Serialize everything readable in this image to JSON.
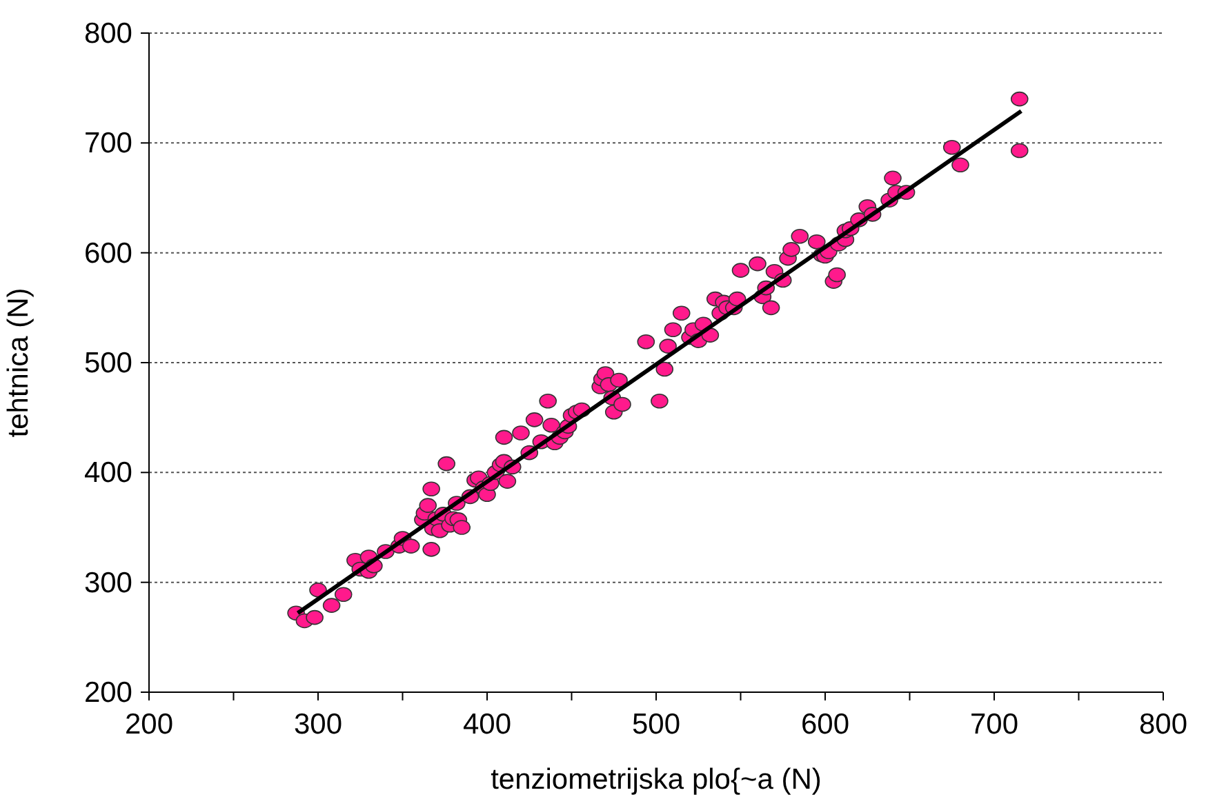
{
  "chart_data": {
    "type": "scatter",
    "xlabel": "tenziometrijska plo{~a (N)",
    "ylabel": "tehtnica (N)",
    "xlim": [
      200,
      800
    ],
    "ylim": [
      200,
      800
    ],
    "xticks": [
      200,
      {
        "value": 250,
        "label": null
      },
      300,
      {
        "value": 350,
        "label": null
      },
      400,
      {
        "value": 450,
        "label": null
      },
      500,
      {
        "value": 550,
        "label": null
      },
      600,
      {
        "value": 650,
        "label": null
      },
      700,
      {
        "value": 750,
        "label": null
      },
      800
    ],
    "yticks": [
      200,
      300,
      400,
      500,
      600,
      700,
      800
    ],
    "grid": "y",
    "marker": "circle",
    "series": [
      {
        "color": "#ff1a8c",
        "x": [
          287,
          292,
          298,
          300,
          308,
          315,
          322,
          325,
          330,
          330,
          333,
          340,
          348,
          350,
          355,
          362,
          363,
          365,
          367,
          367,
          368,
          370,
          372,
          374,
          376,
          378,
          380,
          383,
          382,
          385,
          390,
          393,
          395,
          398,
          400,
          402,
          405,
          408,
          410,
          410,
          412,
          415,
          420,
          425,
          428,
          432,
          436,
          438,
          440,
          443,
          446,
          448,
          450,
          453,
          456,
          467,
          468,
          470,
          472,
          474,
          475,
          478,
          480,
          494,
          502,
          505,
          507,
          510,
          515,
          520,
          522,
          525,
          528,
          532,
          535,
          538,
          540,
          542,
          546,
          548,
          550,
          560,
          563,
          565,
          568,
          570,
          575,
          578,
          580,
          585,
          595,
          598,
          600,
          602,
          605,
          607,
          608,
          612,
          612,
          615,
          620,
          625,
          628,
          638,
          640,
          642,
          648,
          675,
          680,
          715,
          715
        ],
        "values": [
          272,
          265,
          268,
          293,
          279,
          289,
          320,
          312,
          323,
          310,
          315,
          328,
          333,
          340,
          333,
          357,
          363,
          370,
          330,
          385,
          349,
          358,
          347,
          362,
          408,
          352,
          358,
          357,
          372,
          350,
          378,
          393,
          395,
          386,
          380,
          390,
          400,
          407,
          410,
          432,
          392,
          405,
          436,
          418,
          448,
          428,
          465,
          443,
          427,
          432,
          437,
          442,
          452,
          455,
          457,
          478,
          485,
          490,
          480,
          468,
          455,
          484,
          462,
          519,
          465,
          494,
          515,
          530,
          545,
          523,
          530,
          520,
          535,
          525,
          558,
          545,
          555,
          550,
          550,
          558,
          584,
          590,
          560,
          568,
          550,
          583,
          575,
          595,
          603,
          615,
          610,
          598,
          597,
          601,
          574,
          580,
          608,
          612,
          620,
          622,
          630,
          642,
          635,
          648,
          668,
          655,
          655,
          696,
          680,
          740,
          693
        ]
      },
      {
        "type": "line",
        "color": "#000000",
        "marker": "none",
        "x": [
          288,
          716
        ],
        "values": [
          272,
          729
        ]
      }
    ]
  }
}
